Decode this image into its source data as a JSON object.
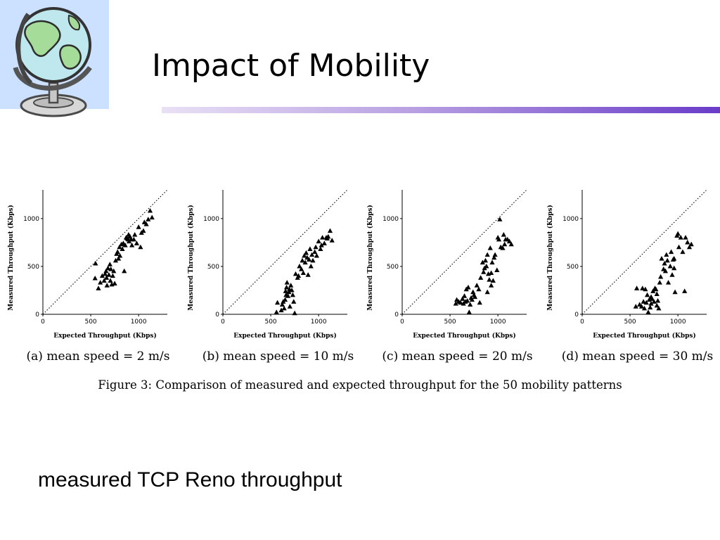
{
  "slide": {
    "title": "Impact of Mobility",
    "bottom_caption": "measured TCP Reno throughput",
    "figure_caption": "Figure 3: Comparison of measured and expected throughput for the 50 mobility patterns"
  },
  "chart_data": [
    {
      "type": "scatter",
      "subcaption": "(a) mean speed = 2 m/s",
      "xlabel": "Expected Throughput (Kbps)",
      "ylabel": "Measured Throughput (Kbps)",
      "xlim": [
        0,
        1300
      ],
      "ylim": [
        0,
        1300
      ],
      "xticks": [
        0,
        500,
        1000
      ],
      "yticks": [
        0,
        500,
        1000
      ],
      "reference_line": "y = x (dotted)",
      "marker": "filled-triangle",
      "series": [
        {
          "points": [
            [
              550,
              530
            ],
            [
              545,
              375
            ],
            [
              580,
              270
            ],
            [
              600,
              330
            ],
            [
              620,
              400
            ],
            [
              640,
              350
            ],
            [
              650,
              420
            ],
            [
              660,
              450
            ],
            [
              665,
              380
            ],
            [
              670,
              300
            ],
            [
              680,
              480
            ],
            [
              690,
              410
            ],
            [
              700,
              520
            ],
            [
              705,
              350
            ],
            [
              710,
              470
            ],
            [
              720,
              310
            ],
            [
              730,
              400
            ],
            [
              740,
              450
            ],
            [
              750,
              320
            ],
            [
              760,
              560
            ],
            [
              770,
              630
            ],
            [
              780,
              650
            ],
            [
              790,
              580
            ],
            [
              800,
              700
            ],
            [
              805,
              610
            ],
            [
              820,
              730
            ],
            [
              830,
              680
            ],
            [
              840,
              740
            ],
            [
              850,
              450
            ],
            [
              860,
              720
            ],
            [
              870,
              800
            ],
            [
              880,
              790
            ],
            [
              890,
              780
            ],
            [
              895,
              830
            ],
            [
              900,
              760
            ],
            [
              910,
              810
            ],
            [
              920,
              780
            ],
            [
              930,
              720
            ],
            [
              950,
              780
            ],
            [
              960,
              830
            ],
            [
              980,
              740
            ],
            [
              1000,
              910
            ],
            [
              1020,
              700
            ],
            [
              1030,
              850
            ],
            [
              1050,
              870
            ],
            [
              1060,
              960
            ],
            [
              1080,
              940
            ],
            [
              1100,
              990
            ],
            [
              1120,
              1080
            ],
            [
              1140,
              1010
            ]
          ]
        }
      ]
    },
    {
      "type": "scatter",
      "subcaption": "(b) mean speed = 10 m/s",
      "xlabel": "Expected Throughput (Kbps)",
      "ylabel": "Measured Throughput (Kbps)",
      "xlim": [
        0,
        1300
      ],
      "ylim": [
        0,
        1300
      ],
      "xticks": [
        0,
        500,
        1000
      ],
      "yticks": [
        0,
        500,
        1000
      ],
      "reference_line": "y = x (dotted)",
      "marker": "filled-triangle",
      "series": [
        {
          "points": [
            [
              560,
              20
            ],
            [
              570,
              120
            ],
            [
              610,
              40
            ],
            [
              620,
              100
            ],
            [
              630,
              130
            ],
            [
              640,
              60
            ],
            [
              650,
              150
            ],
            [
              655,
              240
            ],
            [
              660,
              200
            ],
            [
              665,
              280
            ],
            [
              670,
              330
            ],
            [
              680,
              190
            ],
            [
              690,
              230
            ],
            [
              695,
              260
            ],
            [
              700,
              80
            ],
            [
              710,
              300
            ],
            [
              720,
              250
            ],
            [
              730,
              200
            ],
            [
              740,
              130
            ],
            [
              750,
              10
            ],
            [
              760,
              420
            ],
            [
              780,
              380
            ],
            [
              790,
              400
            ],
            [
              800,
              500
            ],
            [
              820,
              470
            ],
            [
              830,
              560
            ],
            [
              840,
              430
            ],
            [
              850,
              610
            ],
            [
              860,
              540
            ],
            [
              870,
              640
            ],
            [
              880,
              590
            ],
            [
              890,
              410
            ],
            [
              900,
              570
            ],
            [
              910,
              680
            ],
            [
              920,
              500
            ],
            [
              930,
              620
            ],
            [
              940,
              560
            ],
            [
              960,
              650
            ],
            [
              970,
              700
            ],
            [
              980,
              610
            ],
            [
              1000,
              760
            ],
            [
              1020,
              680
            ],
            [
              1030,
              720
            ],
            [
              1040,
              800
            ],
            [
              1060,
              740
            ],
            [
              1080,
              800
            ],
            [
              1090,
              790
            ],
            [
              1100,
              810
            ],
            [
              1120,
              870
            ],
            [
              1140,
              770
            ]
          ]
        }
      ]
    },
    {
      "type": "scatter",
      "subcaption": "(c) mean speed = 20 m/s",
      "xlabel": "Expected Throughput (Kbps)",
      "ylabel": "Measured Throughput (Kbps)",
      "xlim": [
        0,
        1300
      ],
      "ylim": [
        0,
        1300
      ],
      "xticks": [
        0,
        500,
        1000
      ],
      "yticks": [
        0,
        500,
        1000
      ],
      "reference_line": "y = x (dotted)",
      "marker": "filled-triangle",
      "series": [
        {
          "points": [
            [
              560,
              110
            ],
            [
              570,
              150
            ],
            [
              590,
              130
            ],
            [
              610,
              120
            ],
            [
              630,
              160
            ],
            [
              640,
              110
            ],
            [
              650,
              190
            ],
            [
              660,
              130
            ],
            [
              670,
              260
            ],
            [
              680,
              140
            ],
            [
              690,
              280
            ],
            [
              700,
              20
            ],
            [
              710,
              100
            ],
            [
              720,
              170
            ],
            [
              730,
              150
            ],
            [
              740,
              230
            ],
            [
              750,
              200
            ],
            [
              760,
              180
            ],
            [
              780,
              300
            ],
            [
              800,
              260
            ],
            [
              810,
              120
            ],
            [
              820,
              380
            ],
            [
              840,
              540
            ],
            [
              860,
              480
            ],
            [
              870,
              560
            ],
            [
              880,
              500
            ],
            [
              890,
              620
            ],
            [
              900,
              420
            ],
            [
              910,
              360
            ],
            [
              920,
              690
            ],
            [
              930,
              300
            ],
            [
              940,
              540
            ],
            [
              960,
              590
            ],
            [
              970,
              620
            ],
            [
              990,
              460
            ],
            [
              1000,
              800
            ],
            [
              1010,
              780
            ],
            [
              1020,
              990
            ],
            [
              1030,
              700
            ],
            [
              1050,
              690
            ],
            [
              1060,
              830
            ],
            [
              1070,
              730
            ],
            [
              1080,
              780
            ],
            [
              1100,
              780
            ],
            [
              1120,
              760
            ],
            [
              1140,
              730
            ],
            [
              930,
              430
            ],
            [
              890,
              230
            ],
            [
              850,
              440
            ],
            [
              950,
              350
            ]
          ]
        }
      ]
    },
    {
      "type": "scatter",
      "subcaption": "(d) mean speed = 30 m/s",
      "xlabel": "Expected Throughput (Kbps)",
      "ylabel": "Measured Throughput (Kbps)",
      "xlim": [
        0,
        1300
      ],
      "ylim": [
        0,
        1300
      ],
      "xticks": [
        0,
        500,
        1000
      ],
      "yticks": [
        0,
        500,
        1000
      ],
      "reference_line": "y = x (dotted)",
      "marker": "filled-triangle",
      "series": [
        {
          "points": [
            [
              560,
              80
            ],
            [
              570,
              270
            ],
            [
              600,
              100
            ],
            [
              620,
              80
            ],
            [
              630,
              270
            ],
            [
              640,
              130
            ],
            [
              650,
              60
            ],
            [
              660,
              260
            ],
            [
              670,
              120
            ],
            [
              680,
              200
            ],
            [
              690,
              20
            ],
            [
              700,
              150
            ],
            [
              710,
              70
            ],
            [
              720,
              110
            ],
            [
              730,
              160
            ],
            [
              740,
              240
            ],
            [
              750,
              130
            ],
            [
              760,
              270
            ],
            [
              770,
              260
            ],
            [
              780,
              90
            ],
            [
              790,
              140
            ],
            [
              800,
              60
            ],
            [
              810,
              330
            ],
            [
              820,
              390
            ],
            [
              830,
              580
            ],
            [
              850,
              470
            ],
            [
              860,
              530
            ],
            [
              870,
              450
            ],
            [
              880,
              620
            ],
            [
              890,
              560
            ],
            [
              900,
              330
            ],
            [
              920,
              500
            ],
            [
              930,
              650
            ],
            [
              950,
              570
            ],
            [
              960,
              580
            ],
            [
              970,
              230
            ],
            [
              990,
              820
            ],
            [
              1000,
              840
            ],
            [
              1010,
              700
            ],
            [
              1030,
              800
            ],
            [
              1050,
              650
            ],
            [
              1070,
              240
            ],
            [
              1080,
              800
            ],
            [
              1100,
              750
            ],
            [
              1120,
              700
            ],
            [
              1140,
              730
            ],
            [
              940,
              410
            ],
            [
              960,
              480
            ],
            [
              780,
              210
            ],
            [
              720,
              180
            ]
          ]
        }
      ]
    }
  ]
}
